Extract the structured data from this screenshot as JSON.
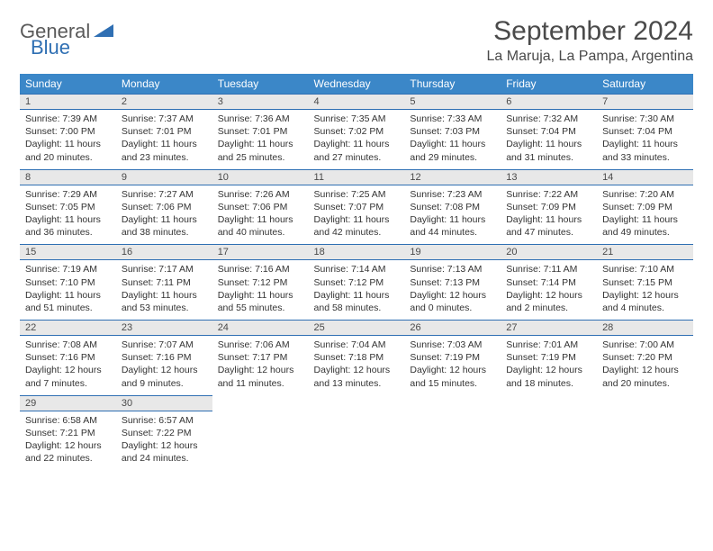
{
  "logo": {
    "part1": "General",
    "part2": "Blue"
  },
  "title": "September 2024",
  "location": "La Maruja, La Pampa, Argentina",
  "colors": {
    "header_bg": "#3b87c8",
    "header_text": "#ffffff",
    "divider": "#2f6fb3",
    "daynum_bg": "#e8e8e8",
    "text": "#333333",
    "logo_gray": "#5a5a5a",
    "logo_blue": "#2f6fb3"
  },
  "weekdays": [
    "Sunday",
    "Monday",
    "Tuesday",
    "Wednesday",
    "Thursday",
    "Friday",
    "Saturday"
  ],
  "weeks": [
    [
      {
        "n": "1",
        "sunrise": "Sunrise: 7:39 AM",
        "sunset": "Sunset: 7:00 PM",
        "day1": "Daylight: 11 hours",
        "day2": "and 20 minutes."
      },
      {
        "n": "2",
        "sunrise": "Sunrise: 7:37 AM",
        "sunset": "Sunset: 7:01 PM",
        "day1": "Daylight: 11 hours",
        "day2": "and 23 minutes."
      },
      {
        "n": "3",
        "sunrise": "Sunrise: 7:36 AM",
        "sunset": "Sunset: 7:01 PM",
        "day1": "Daylight: 11 hours",
        "day2": "and 25 minutes."
      },
      {
        "n": "4",
        "sunrise": "Sunrise: 7:35 AM",
        "sunset": "Sunset: 7:02 PM",
        "day1": "Daylight: 11 hours",
        "day2": "and 27 minutes."
      },
      {
        "n": "5",
        "sunrise": "Sunrise: 7:33 AM",
        "sunset": "Sunset: 7:03 PM",
        "day1": "Daylight: 11 hours",
        "day2": "and 29 minutes."
      },
      {
        "n": "6",
        "sunrise": "Sunrise: 7:32 AM",
        "sunset": "Sunset: 7:04 PM",
        "day1": "Daylight: 11 hours",
        "day2": "and 31 minutes."
      },
      {
        "n": "7",
        "sunrise": "Sunrise: 7:30 AM",
        "sunset": "Sunset: 7:04 PM",
        "day1": "Daylight: 11 hours",
        "day2": "and 33 minutes."
      }
    ],
    [
      {
        "n": "8",
        "sunrise": "Sunrise: 7:29 AM",
        "sunset": "Sunset: 7:05 PM",
        "day1": "Daylight: 11 hours",
        "day2": "and 36 minutes."
      },
      {
        "n": "9",
        "sunrise": "Sunrise: 7:27 AM",
        "sunset": "Sunset: 7:06 PM",
        "day1": "Daylight: 11 hours",
        "day2": "and 38 minutes."
      },
      {
        "n": "10",
        "sunrise": "Sunrise: 7:26 AM",
        "sunset": "Sunset: 7:06 PM",
        "day1": "Daylight: 11 hours",
        "day2": "and 40 minutes."
      },
      {
        "n": "11",
        "sunrise": "Sunrise: 7:25 AM",
        "sunset": "Sunset: 7:07 PM",
        "day1": "Daylight: 11 hours",
        "day2": "and 42 minutes."
      },
      {
        "n": "12",
        "sunrise": "Sunrise: 7:23 AM",
        "sunset": "Sunset: 7:08 PM",
        "day1": "Daylight: 11 hours",
        "day2": "and 44 minutes."
      },
      {
        "n": "13",
        "sunrise": "Sunrise: 7:22 AM",
        "sunset": "Sunset: 7:09 PM",
        "day1": "Daylight: 11 hours",
        "day2": "and 47 minutes."
      },
      {
        "n": "14",
        "sunrise": "Sunrise: 7:20 AM",
        "sunset": "Sunset: 7:09 PM",
        "day1": "Daylight: 11 hours",
        "day2": "and 49 minutes."
      }
    ],
    [
      {
        "n": "15",
        "sunrise": "Sunrise: 7:19 AM",
        "sunset": "Sunset: 7:10 PM",
        "day1": "Daylight: 11 hours",
        "day2": "and 51 minutes."
      },
      {
        "n": "16",
        "sunrise": "Sunrise: 7:17 AM",
        "sunset": "Sunset: 7:11 PM",
        "day1": "Daylight: 11 hours",
        "day2": "and 53 minutes."
      },
      {
        "n": "17",
        "sunrise": "Sunrise: 7:16 AM",
        "sunset": "Sunset: 7:12 PM",
        "day1": "Daylight: 11 hours",
        "day2": "and 55 minutes."
      },
      {
        "n": "18",
        "sunrise": "Sunrise: 7:14 AM",
        "sunset": "Sunset: 7:12 PM",
        "day1": "Daylight: 11 hours",
        "day2": "and 58 minutes."
      },
      {
        "n": "19",
        "sunrise": "Sunrise: 7:13 AM",
        "sunset": "Sunset: 7:13 PM",
        "day1": "Daylight: 12 hours",
        "day2": "and 0 minutes."
      },
      {
        "n": "20",
        "sunrise": "Sunrise: 7:11 AM",
        "sunset": "Sunset: 7:14 PM",
        "day1": "Daylight: 12 hours",
        "day2": "and 2 minutes."
      },
      {
        "n": "21",
        "sunrise": "Sunrise: 7:10 AM",
        "sunset": "Sunset: 7:15 PM",
        "day1": "Daylight: 12 hours",
        "day2": "and 4 minutes."
      }
    ],
    [
      {
        "n": "22",
        "sunrise": "Sunrise: 7:08 AM",
        "sunset": "Sunset: 7:16 PM",
        "day1": "Daylight: 12 hours",
        "day2": "and 7 minutes."
      },
      {
        "n": "23",
        "sunrise": "Sunrise: 7:07 AM",
        "sunset": "Sunset: 7:16 PM",
        "day1": "Daylight: 12 hours",
        "day2": "and 9 minutes."
      },
      {
        "n": "24",
        "sunrise": "Sunrise: 7:06 AM",
        "sunset": "Sunset: 7:17 PM",
        "day1": "Daylight: 12 hours",
        "day2": "and 11 minutes."
      },
      {
        "n": "25",
        "sunrise": "Sunrise: 7:04 AM",
        "sunset": "Sunset: 7:18 PM",
        "day1": "Daylight: 12 hours",
        "day2": "and 13 minutes."
      },
      {
        "n": "26",
        "sunrise": "Sunrise: 7:03 AM",
        "sunset": "Sunset: 7:19 PM",
        "day1": "Daylight: 12 hours",
        "day2": "and 15 minutes."
      },
      {
        "n": "27",
        "sunrise": "Sunrise: 7:01 AM",
        "sunset": "Sunset: 7:19 PM",
        "day1": "Daylight: 12 hours",
        "day2": "and 18 minutes."
      },
      {
        "n": "28",
        "sunrise": "Sunrise: 7:00 AM",
        "sunset": "Sunset: 7:20 PM",
        "day1": "Daylight: 12 hours",
        "day2": "and 20 minutes."
      }
    ],
    [
      {
        "n": "29",
        "sunrise": "Sunrise: 6:58 AM",
        "sunset": "Sunset: 7:21 PM",
        "day1": "Daylight: 12 hours",
        "day2": "and 22 minutes."
      },
      {
        "n": "30",
        "sunrise": "Sunrise: 6:57 AM",
        "sunset": "Sunset: 7:22 PM",
        "day1": "Daylight: 12 hours",
        "day2": "and 24 minutes."
      },
      null,
      null,
      null,
      null,
      null
    ]
  ]
}
